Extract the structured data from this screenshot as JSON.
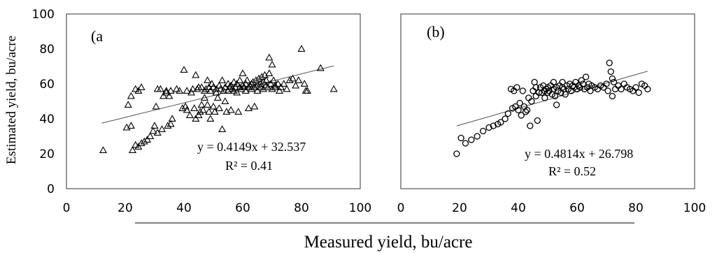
{
  "figure": {
    "ylabel": "Estimated yield, bu/acre",
    "xlabel": "Measured yield, bu/acre"
  },
  "chart_data": [
    {
      "type": "scatter",
      "panel_label": "(a",
      "marker": "triangle",
      "xlim": [
        0,
        100
      ],
      "ylim": [
        0,
        100
      ],
      "xticks": [
        "0",
        "20",
        "40",
        "60",
        "80",
        "100"
      ],
      "yticks": [
        "0",
        "20",
        "40",
        "60",
        "80",
        "100"
      ],
      "trendline": {
        "slope": 0.4149,
        "intercept": 32.537,
        "x_range": [
          12,
          91
        ]
      },
      "equation": "y = 0.4149x + 32.537",
      "r2": "R² = 0.41",
      "points": [
        [
          12.5,
          22
        ],
        [
          20.5,
          35
        ],
        [
          21,
          48
        ],
        [
          22,
          36
        ],
        [
          22,
          53
        ],
        [
          22.5,
          22
        ],
        [
          23.5,
          25
        ],
        [
          23.5,
          57
        ],
        [
          24.5,
          56
        ],
        [
          24.5,
          24
        ],
        [
          25.5,
          58
        ],
        [
          25.5,
          26
        ],
        [
          26.5,
          27
        ],
        [
          27.5,
          28
        ],
        [
          28.5,
          30
        ],
        [
          29.5,
          33
        ],
        [
          30,
          36
        ],
        [
          30.5,
          47
        ],
        [
          31,
          57
        ],
        [
          31,
          32
        ],
        [
          32,
          57
        ],
        [
          32.5,
          34
        ],
        [
          33,
          53
        ],
        [
          34,
          55
        ],
        [
          34,
          56
        ],
        [
          34.5,
          36
        ],
        [
          35,
          53
        ],
        [
          35.5,
          37
        ],
        [
          35.5,
          56
        ],
        [
          36,
          40
        ],
        [
          37.5,
          57
        ],
        [
          38.5,
          56
        ],
        [
          39.5,
          46
        ],
        [
          40,
          68
        ],
        [
          40.5,
          47
        ],
        [
          41,
          56
        ],
        [
          41,
          45
        ],
        [
          42,
          42
        ],
        [
          42.5,
          55
        ],
        [
          43,
          57
        ],
        [
          43.5,
          46
        ],
        [
          44,
          65
        ],
        [
          44,
          40
        ],
        [
          44.5,
          57
        ],
        [
          45,
          42
        ],
        [
          45,
          58
        ],
        [
          45.5,
          44
        ],
        [
          46,
          58
        ],
        [
          46,
          48
        ],
        [
          46.5,
          45
        ],
        [
          47,
          52
        ],
        [
          47,
          56
        ],
        [
          47.5,
          57
        ],
        [
          48,
          48
        ],
        [
          48,
          62
        ],
        [
          48.5,
          44
        ],
        [
          48.5,
          58
        ],
        [
          49,
          40
        ],
        [
          49,
          56
        ],
        [
          49.5,
          60
        ],
        [
          50,
          47
        ],
        [
          50,
          58
        ],
        [
          50.5,
          44
        ],
        [
          51,
          55
        ],
        [
          51,
          57
        ],
        [
          51.5,
          52
        ],
        [
          52,
          59
        ],
        [
          52,
          46
        ],
        [
          52.5,
          57
        ],
        [
          53,
          34
        ],
        [
          53,
          62
        ],
        [
          53.5,
          56
        ],
        [
          54,
          50
        ],
        [
          54,
          58
        ],
        [
          54.5,
          44
        ],
        [
          55,
          56
        ],
        [
          55,
          60
        ],
        [
          55.5,
          58
        ],
        [
          56,
          45
        ],
        [
          56,
          59
        ],
        [
          56.5,
          57
        ],
        [
          57,
          56
        ],
        [
          57,
          61
        ],
        [
          57.5,
          58
        ],
        [
          58,
          55
        ],
        [
          58,
          60
        ],
        [
          58.5,
          44
        ],
        [
          59,
          58
        ],
        [
          59,
          62
        ],
        [
          59.5,
          57
        ],
        [
          60,
          66
        ],
        [
          60,
          59
        ],
        [
          60.5,
          58
        ],
        [
          61,
          56
        ],
        [
          61,
          60
        ],
        [
          61.5,
          62
        ],
        [
          62,
          58
        ],
        [
          62,
          46
        ],
        [
          62.5,
          59
        ],
        [
          63,
          60
        ],
        [
          63,
          57
        ],
        [
          63.5,
          61
        ],
        [
          64,
          58
        ],
        [
          64,
          47
        ],
        [
          64.5,
          62
        ],
        [
          65,
          59
        ],
        [
          65,
          56
        ],
        [
          65.5,
          63
        ],
        [
          66,
          60
        ],
        [
          66,
          58
        ],
        [
          66.5,
          64
        ],
        [
          67,
          57
        ],
        [
          67,
          61
        ],
        [
          67.5,
          65
        ],
        [
          68,
          59
        ],
        [
          68,
          62
        ],
        [
          68.5,
          58
        ],
        [
          69,
          75
        ],
        [
          69,
          66
        ],
        [
          69.5,
          60
        ],
        [
          70,
          71
        ],
        [
          70,
          57
        ],
        [
          70.5,
          62
        ],
        [
          71,
          59
        ],
        [
          71,
          58
        ],
        [
          72,
          60
        ],
        [
          72.5,
          56
        ],
        [
          73,
          58
        ],
        [
          74,
          60
        ],
        [
          75,
          57
        ],
        [
          76,
          62
        ],
        [
          77,
          63
        ],
        [
          78,
          59
        ],
        [
          79,
          62
        ],
        [
          80,
          80
        ],
        [
          81,
          60
        ],
        [
          81.5,
          56
        ],
        [
          82,
          56
        ],
        [
          86.5,
          69
        ],
        [
          91,
          57
        ]
      ]
    },
    {
      "type": "scatter",
      "panel_label": "(b)",
      "marker": "circle",
      "xlim": [
        0,
        100
      ],
      "ylim": [
        0,
        100
      ],
      "xticks": [
        "0",
        "20",
        "40",
        "60",
        "80",
        "100"
      ],
      "yticks": [],
      "trendline": {
        "slope": 0.4814,
        "intercept": 26.798,
        "x_range": [
          19,
          84
        ]
      },
      "equation": "y = 0.4814x + 26.798",
      "r2": "R² = 0.52",
      "points": [
        [
          19,
          20
        ],
        [
          20.5,
          29
        ],
        [
          22,
          26
        ],
        [
          24,
          28
        ],
        [
          26,
          30
        ],
        [
          28,
          33
        ],
        [
          30,
          35
        ],
        [
          31.5,
          36
        ],
        [
          33,
          37
        ],
        [
          34,
          38
        ],
        [
          35.5,
          40
        ],
        [
          36.5,
          43
        ],
        [
          37.5,
          57
        ],
        [
          38,
          46
        ],
        [
          38.5,
          56
        ],
        [
          39,
          47
        ],
        [
          39.5,
          58
        ],
        [
          40,
          45
        ],
        [
          40.5,
          49
        ],
        [
          41,
          42
        ],
        [
          41.5,
          56
        ],
        [
          42,
          47
        ],
        [
          42.5,
          44
        ],
        [
          43,
          45
        ],
        [
          43.5,
          52
        ],
        [
          44,
          36
        ],
        [
          44.5,
          50
        ],
        [
          45,
          56
        ],
        [
          45.5,
          61
        ],
        [
          46,
          53
        ],
        [
          46,
          58
        ],
        [
          46.5,
          39
        ],
        [
          47,
          55
        ],
        [
          47.5,
          58
        ],
        [
          48,
          55
        ],
        [
          48.5,
          59
        ],
        [
          49,
          52
        ],
        [
          49,
          56
        ],
        [
          49.5,
          57
        ],
        [
          50,
          55
        ],
        [
          50,
          58
        ],
        [
          50.5,
          56
        ],
        [
          51,
          59
        ],
        [
          51.5,
          54
        ],
        [
          52,
          57
        ],
        [
          52,
          61
        ],
        [
          52.5,
          53
        ],
        [
          53,
          58
        ],
        [
          53,
          48
        ],
        [
          53.5,
          56
        ],
        [
          54,
          59
        ],
        [
          54.5,
          55
        ],
        [
          55,
          58
        ],
        [
          55,
          61
        ],
        [
          55.5,
          57
        ],
        [
          56,
          54
        ],
        [
          56.5,
          59
        ],
        [
          57,
          57
        ],
        [
          57.5,
          60
        ],
        [
          58,
          56
        ],
        [
          58.5,
          59
        ],
        [
          59,
          58
        ],
        [
          59.5,
          61
        ],
        [
          60,
          57
        ],
        [
          60.5,
          59
        ],
        [
          61,
          58
        ],
        [
          61.5,
          62
        ],
        [
          62,
          60
        ],
        [
          62.5,
          57
        ],
        [
          63,
          64
        ],
        [
          63.5,
          58
        ],
        [
          64,
          60
        ],
        [
          64.5,
          56
        ],
        [
          65,
          59
        ],
        [
          66,
          58
        ],
        [
          67,
          57
        ],
        [
          68,
          59
        ],
        [
          69,
          58
        ],
        [
          70,
          60
        ],
        [
          70.5,
          56
        ],
        [
          71,
          72
        ],
        [
          71.5,
          67
        ],
        [
          72,
          53
        ],
        [
          72,
          63
        ],
        [
          72.5,
          61
        ],
        [
          73,
          57
        ],
        [
          74,
          59
        ],
        [
          75,
          57
        ],
        [
          76,
          60
        ],
        [
          77,
          58
        ],
        [
          78,
          57
        ],
        [
          79,
          56
        ],
        [
          80,
          58
        ],
        [
          81,
          55
        ],
        [
          82,
          60
        ],
        [
          83,
          59
        ],
        [
          84,
          57
        ]
      ]
    }
  ]
}
